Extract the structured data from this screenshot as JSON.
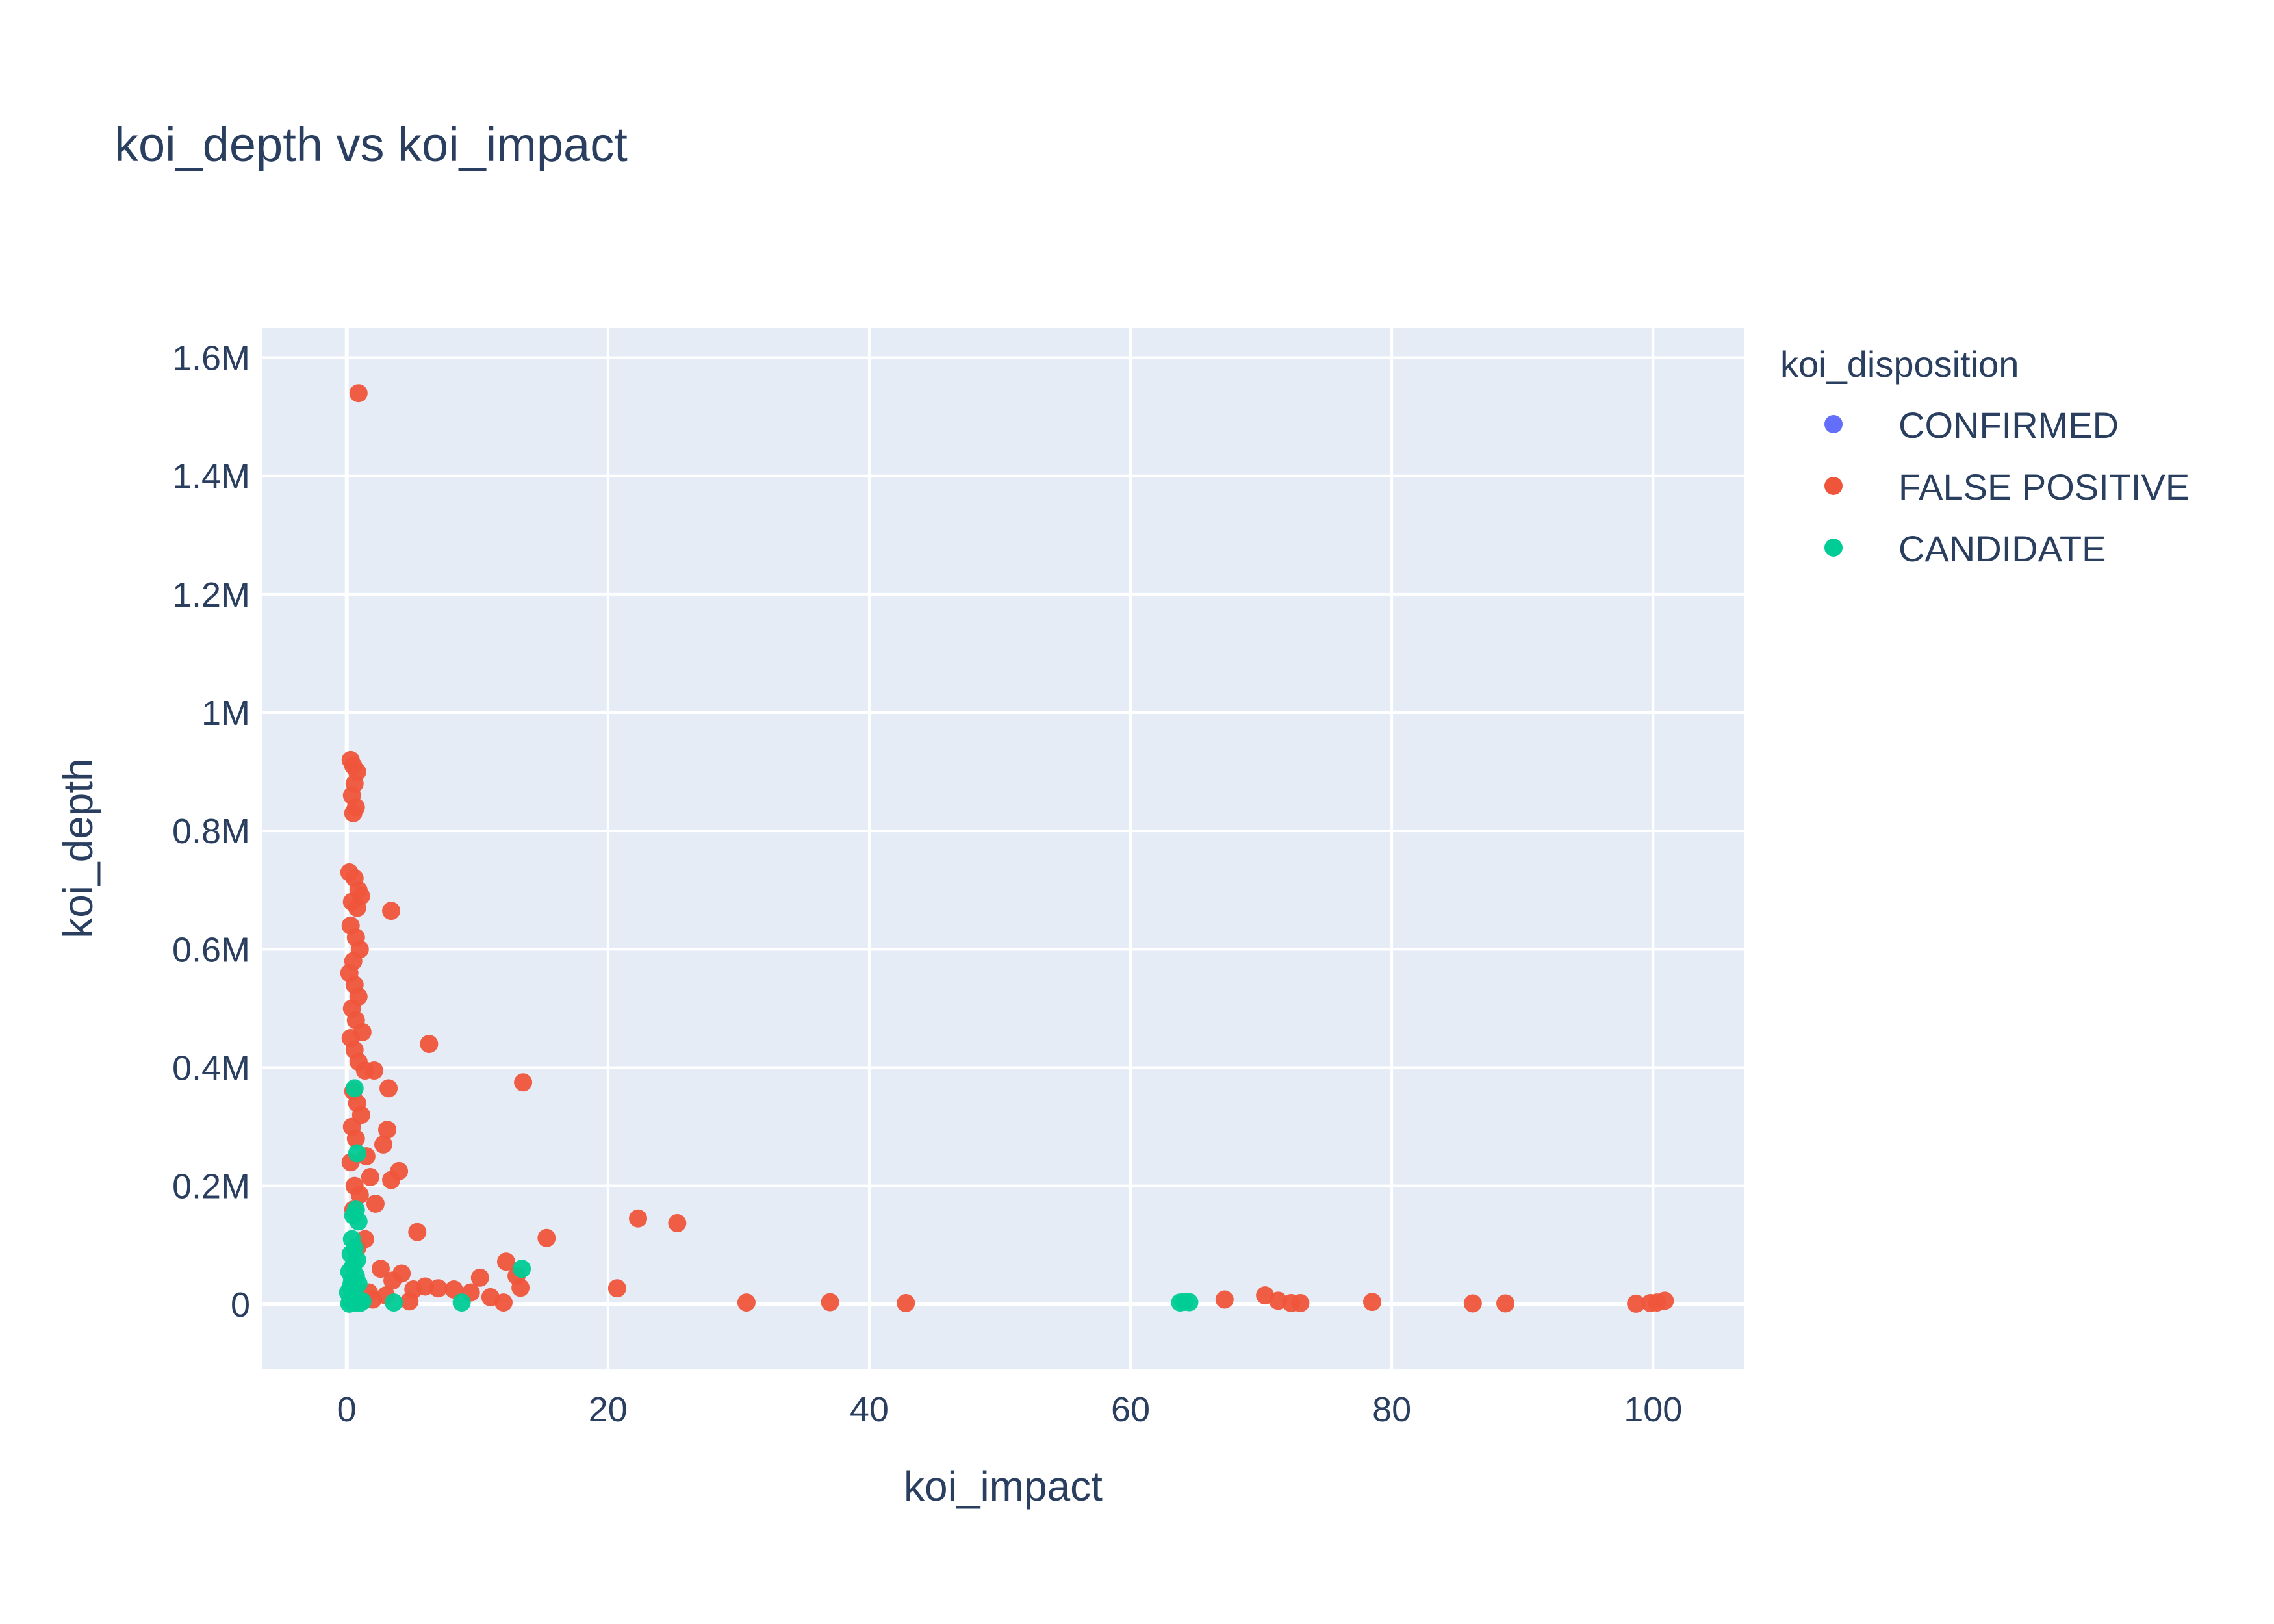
{
  "chart_data": {
    "type": "scatter",
    "title": "koi_depth vs koi_impact",
    "xlabel": "koi_impact",
    "ylabel": "koi_depth",
    "xlim": [
      -6.5,
      107
    ],
    "ylim": [
      -110000,
      1650000
    ],
    "x_ticks": [
      0,
      20,
      40,
      60,
      80,
      100
    ],
    "x_tick_labels": [
      "0",
      "20",
      "40",
      "60",
      "80",
      "100"
    ],
    "y_ticks": [
      0,
      200000,
      400000,
      600000,
      800000,
      1000000,
      1200000,
      1400000,
      1600000
    ],
    "y_tick_labels": [
      "0",
      "0.2M",
      "0.4M",
      "0.6M",
      "0.8M",
      "1M",
      "1.2M",
      "1.4M",
      "1.6M"
    ],
    "grid": true,
    "legend": {
      "title": "koi_disposition",
      "placement": "right"
    },
    "series": [
      {
        "name": "CONFIRMED",
        "color": "#636efa",
        "points": []
      },
      {
        "name": "FALSE POSITIVE",
        "color": "#ef553b",
        "points": [
          [
            0.9,
            1540000
          ],
          [
            0.3,
            920000
          ],
          [
            0.5,
            910000
          ],
          [
            0.8,
            900000
          ],
          [
            0.6,
            880000
          ],
          [
            0.4,
            860000
          ],
          [
            0.7,
            840000
          ],
          [
            0.5,
            830000
          ],
          [
            0.2,
            730000
          ],
          [
            0.6,
            720000
          ],
          [
            0.9,
            700000
          ],
          [
            1.1,
            690000
          ],
          [
            0.4,
            680000
          ],
          [
            0.8,
            670000
          ],
          [
            3.4,
            665000
          ],
          [
            0.3,
            640000
          ],
          [
            0.7,
            620000
          ],
          [
            1.0,
            600000
          ],
          [
            0.5,
            580000
          ],
          [
            0.2,
            560000
          ],
          [
            0.6,
            540000
          ],
          [
            0.9,
            520000
          ],
          [
            0.4,
            500000
          ],
          [
            0.7,
            480000
          ],
          [
            1.2,
            460000
          ],
          [
            0.3,
            450000
          ],
          [
            6.3,
            440000
          ],
          [
            0.6,
            430000
          ],
          [
            0.9,
            410000
          ],
          [
            1.4,
            395000
          ],
          [
            2.1,
            395000
          ],
          [
            13.5,
            375000
          ],
          [
            3.2,
            365000
          ],
          [
            0.5,
            360000
          ],
          [
            0.8,
            340000
          ],
          [
            1.1,
            320000
          ],
          [
            0.4,
            300000
          ],
          [
            3.1,
            295000
          ],
          [
            0.7,
            280000
          ],
          [
            2.8,
            270000
          ],
          [
            1.5,
            250000
          ],
          [
            0.3,
            240000
          ],
          [
            4.0,
            225000
          ],
          [
            1.8,
            215000
          ],
          [
            3.4,
            210000
          ],
          [
            0.6,
            200000
          ],
          [
            1.0,
            185000
          ],
          [
            2.2,
            170000
          ],
          [
            0.5,
            160000
          ],
          [
            22.3,
            145000
          ],
          [
            25.3,
            137000
          ],
          [
            5.4,
            122000
          ],
          [
            15.3,
            112000
          ],
          [
            1.4,
            110000
          ],
          [
            0.8,
            95000
          ],
          [
            12.2,
            72000
          ],
          [
            2.6,
            60000
          ],
          [
            4.2,
            52000
          ],
          [
            13.0,
            48000
          ],
          [
            10.2,
            45000
          ],
          [
            3.5,
            40000
          ],
          [
            6.0,
            30000
          ],
          [
            13.3,
            28000
          ],
          [
            20.7,
            27000
          ],
          [
            5.1,
            25000
          ],
          [
            7.0,
            27000
          ],
          [
            8.2,
            25000
          ],
          [
            9.5,
            20000
          ],
          [
            11.0,
            12000
          ],
          [
            3.0,
            15000
          ],
          [
            1.7,
            20000
          ],
          [
            2.0,
            8000
          ],
          [
            4.8,
            5000
          ],
          [
            12.0,
            3000
          ],
          [
            30.6,
            3000
          ],
          [
            37.0,
            3500
          ],
          [
            42.8,
            2000
          ],
          [
            67.2,
            8000
          ],
          [
            70.3,
            15000
          ],
          [
            71.3,
            6000
          ],
          [
            72.3,
            2000
          ],
          [
            73.0,
            2000
          ],
          [
            78.5,
            4000
          ],
          [
            86.2,
            1500
          ],
          [
            88.7,
            1500
          ],
          [
            98.7,
            1000
          ],
          [
            99.8,
            2000
          ],
          [
            100.3,
            3000
          ],
          [
            100.9,
            6000
          ]
        ]
      },
      {
        "name": "CANDIDATE",
        "color": "#00cc96",
        "points": [
          [
            0.6,
            365000
          ],
          [
            0.8,
            255000
          ],
          [
            0.7,
            160000
          ],
          [
            0.5,
            150000
          ],
          [
            0.9,
            140000
          ],
          [
            0.4,
            110000
          ],
          [
            0.6,
            95000
          ],
          [
            0.3,
            85000
          ],
          [
            0.8,
            75000
          ],
          [
            0.5,
            65000
          ],
          [
            0.2,
            55000
          ],
          [
            0.7,
            48000
          ],
          [
            0.4,
            40000
          ],
          [
            0.9,
            35000
          ],
          [
            0.3,
            30000
          ],
          [
            0.6,
            25000
          ],
          [
            0.1,
            20000
          ],
          [
            0.5,
            15000
          ],
          [
            0.8,
            10000
          ],
          [
            0.3,
            6000
          ],
          [
            0.6,
            3000
          ],
          [
            0.2,
            1000
          ],
          [
            1.0,
            2000
          ],
          [
            1.2,
            5000
          ],
          [
            13.4,
            60000
          ],
          [
            3.6,
            3000
          ],
          [
            8.8,
            3000
          ],
          [
            63.8,
            3000
          ],
          [
            64.1,
            4000
          ],
          [
            64.5,
            3500
          ]
        ]
      }
    ]
  }
}
